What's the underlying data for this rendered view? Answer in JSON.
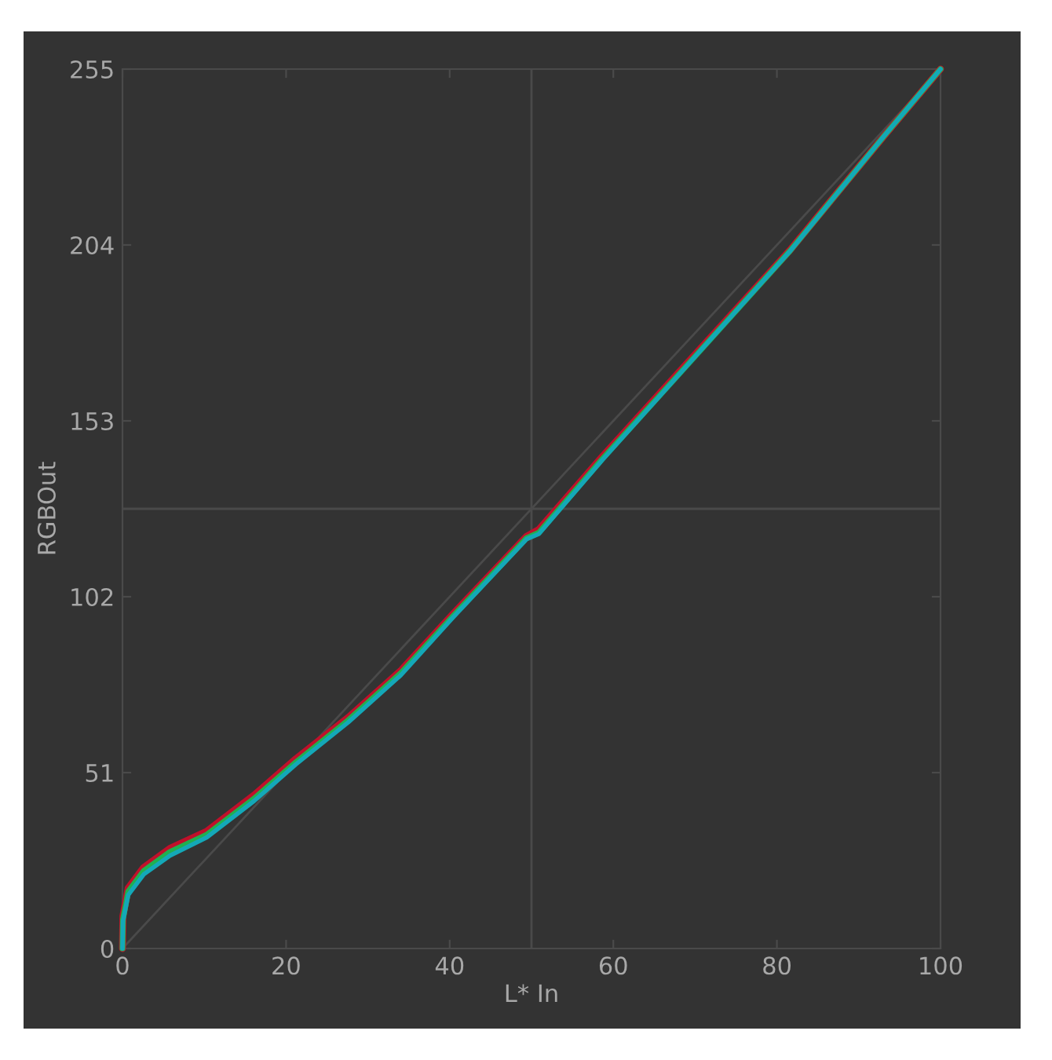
{
  "chart_data": {
    "type": "line",
    "xlabel": "L* In",
    "ylabel": "RGBOut",
    "xlim": [
      0,
      100
    ],
    "ylim": [
      0,
      255
    ],
    "xticks": [
      0,
      20,
      40,
      60,
      80,
      100
    ],
    "yticks": [
      0,
      51,
      102,
      153,
      204,
      255
    ],
    "grid": false,
    "marker": "none",
    "line_style": "solid",
    "ref_lines": [
      {
        "axis": "x",
        "value": 50,
        "color": "#4a4a4a"
      },
      {
        "axis": "y",
        "value": 127.5,
        "color": "#4a4a4a"
      }
    ],
    "series": [
      {
        "color": "#4a4a4a",
        "x": [
          0,
          100
        ],
        "values": [
          0,
          255
        ]
      },
      {
        "color": "#c0102a",
        "x": [
          0,
          0.06,
          0.7,
          2.6,
          5.8,
          10.3,
          16.1,
          21.2,
          27.6,
          34,
          40.4,
          49.4,
          50.9,
          58.6,
          70.1,
          81.6,
          93.1,
          100
        ],
        "values": [
          0,
          9.5,
          17.5,
          23.5,
          29,
          34,
          44.5,
          55,
          67,
          80.5,
          97,
          119.5,
          121.5,
          142.5,
          172.5,
          202.5,
          235.6,
          255
        ]
      },
      {
        "color": "#20b050",
        "x": [
          0,
          0.06,
          0.7,
          2.6,
          5.8,
          10.3,
          16.1,
          21.2,
          27.6,
          34,
          40.4,
          49.4,
          50.9,
          58.6,
          70.1,
          81.6,
          93.1,
          100
        ],
        "values": [
          0,
          8.5,
          16.5,
          22.5,
          28,
          33,
          43.5,
          54,
          66.2,
          79.8,
          96.4,
          119,
          120.6,
          141.8,
          172,
          202.3,
          235.6,
          255
        ]
      },
      {
        "color": "#14a8b8",
        "x": [
          0,
          0.06,
          0.7,
          2.6,
          5.8,
          10.3,
          16.1,
          21.2,
          27.6,
          34,
          40.4,
          49.4,
          50.9,
          58.6,
          70.1,
          81.6,
          93.1,
          100
        ],
        "values": [
          0,
          7.9,
          15.5,
          21.5,
          26.9,
          32.2,
          42.8,
          53.4,
          65.6,
          79.2,
          96,
          118.7,
          120.2,
          141.5,
          171.9,
          202.2,
          235.6,
          255
        ]
      }
    ]
  }
}
